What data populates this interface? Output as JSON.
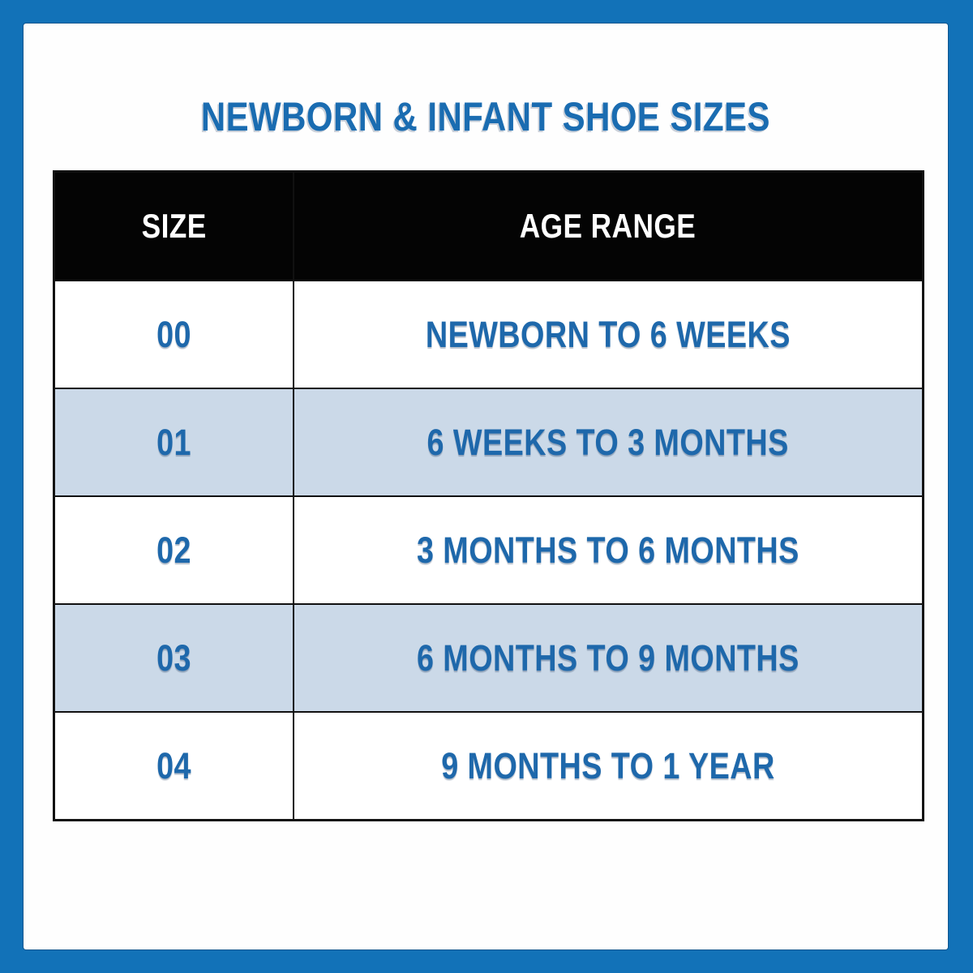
{
  "page": {
    "title": "NEWBORN & INFANT SHOE SIZES"
  },
  "colors": {
    "frame_blue": "#1272b8",
    "title_blue": "#1a6cb1",
    "cell_text_blue": "#1e68ab",
    "row_alt_blue": "#cbd9e8",
    "header_bg": "#040404",
    "header_text": "#ffffff",
    "grid_black": "#111111"
  },
  "table": {
    "columns": [
      "SIZE",
      "AGE RANGE"
    ],
    "rows": [
      {
        "size": "00",
        "age_range": "NEWBORN TO 6 WEEKS"
      },
      {
        "size": "01",
        "age_range": "6 WEEKS TO 3 MONTHS"
      },
      {
        "size": "02",
        "age_range": "3 MONTHS TO 6 MONTHS"
      },
      {
        "size": "03",
        "age_range": "6 MONTHS TO 9 MONTHS"
      },
      {
        "size": "04",
        "age_range": "9 MONTHS TO 1 YEAR"
      }
    ]
  },
  "chart_data": {
    "type": "table",
    "title": "NEWBORN & INFANT SHOE SIZES",
    "columns": [
      "SIZE",
      "AGE RANGE"
    ],
    "rows": [
      [
        "00",
        "NEWBORN TO 6 WEEKS"
      ],
      [
        "01",
        "6 WEEKS TO 3 MONTHS"
      ],
      [
        "02",
        "3 MONTHS TO 6 MONTHS"
      ],
      [
        "03",
        "6 MONTHS TO 9 MONTHS"
      ],
      [
        "04",
        "9 MONTHS TO 1 YEAR"
      ]
    ],
    "layout_hints": {
      "header_style": "black background, white text",
      "row_striping": "odd rows white, even rows light blue",
      "frame": "solid blue border around white sheet"
    }
  }
}
